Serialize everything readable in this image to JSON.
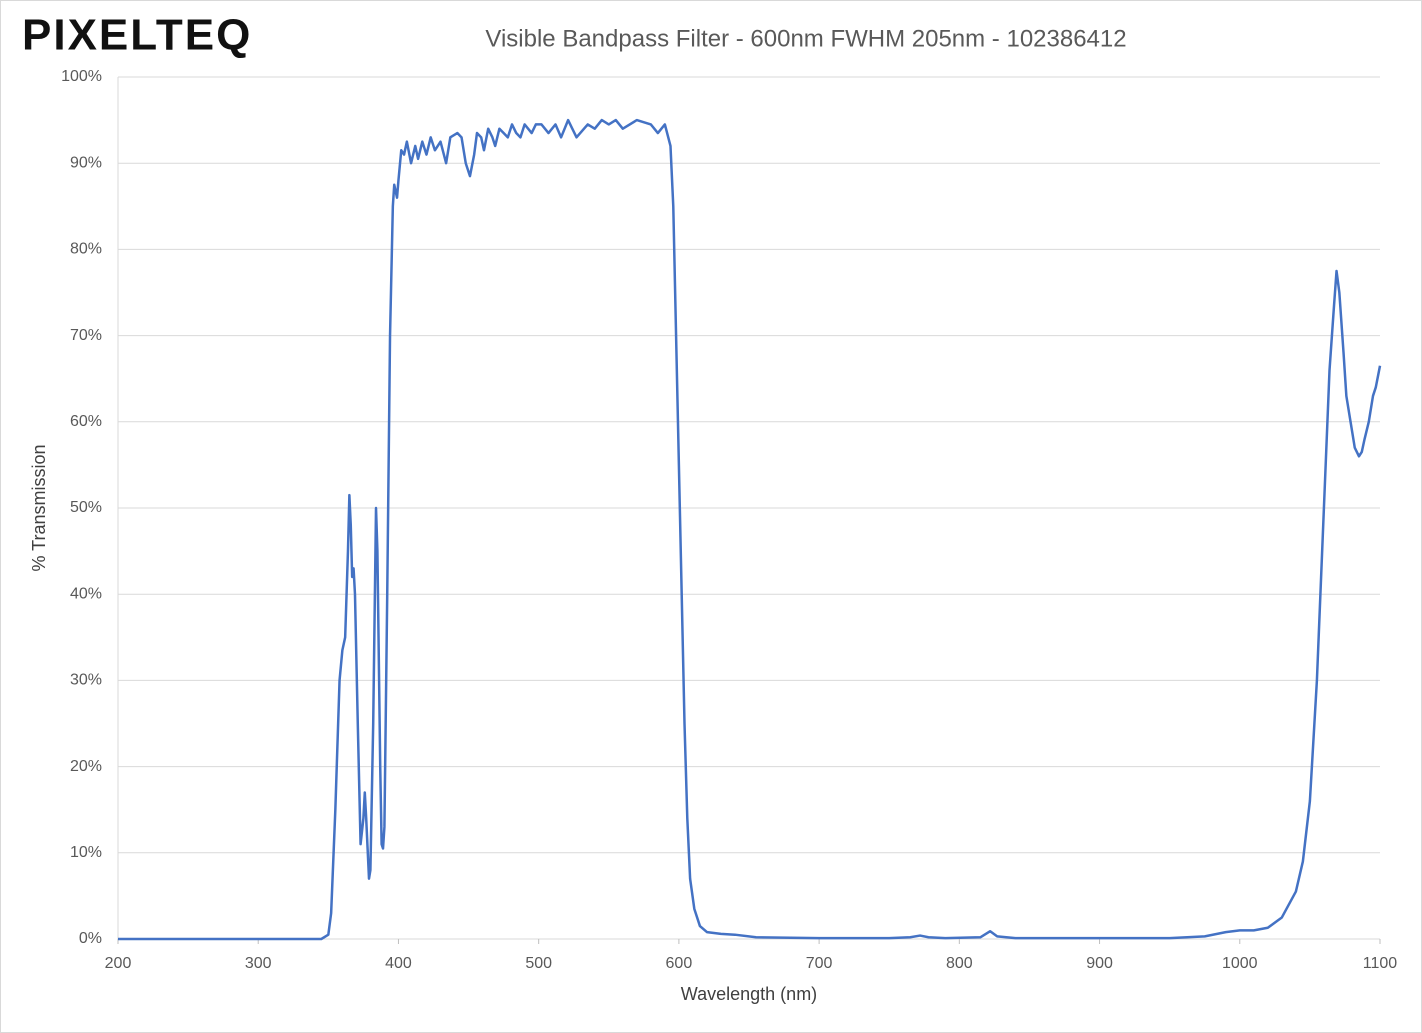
{
  "logo": "PIXELTEQ",
  "chart_data": {
    "type": "line",
    "title": "Visible Bandpass Filter - 600nm FWHM 205nm - 102386412",
    "x_label": "Wavelength (nm)",
    "y_label": "% Transmission",
    "xlim": [
      200,
      1100
    ],
    "xticks": [
      200,
      300,
      400,
      500,
      600,
      700,
      800,
      900,
      1000,
      1100
    ],
    "ylim": [
      0,
      100
    ],
    "yticks": [
      {
        "value": 0,
        "label": "0%"
      },
      {
        "value": 10,
        "label": "10%"
      },
      {
        "value": 20,
        "label": "20%"
      },
      {
        "value": 30,
        "label": "30%"
      },
      {
        "value": 40,
        "label": "40%"
      },
      {
        "value": 50,
        "label": "50%"
      },
      {
        "value": 60,
        "label": "60%"
      },
      {
        "value": 70,
        "label": "70%"
      },
      {
        "value": 80,
        "label": "80%"
      },
      {
        "value": 90,
        "label": "90%"
      },
      {
        "value": 100,
        "label": "100%"
      }
    ],
    "grid": true,
    "series": [
      {
        "color": "#4472c4",
        "x": [
          200,
          300,
          345,
          350,
          352,
          355,
          358,
          360,
          362,
          364,
          365,
          366,
          367,
          368,
          369,
          371,
          373,
          375,
          376,
          377,
          379,
          380,
          382,
          384,
          385,
          387,
          388,
          389,
          390,
          392,
          394,
          396,
          397,
          399,
          400,
          402,
          404,
          406,
          409,
          412,
          414,
          417,
          420,
          423,
          426,
          430,
          434,
          437,
          442,
          445,
          448,
          451,
          454,
          456,
          459,
          461,
          464,
          467,
          469,
          472,
          475,
          478,
          481,
          484,
          487,
          490,
          495,
          498,
          502,
          507,
          512,
          516,
          521,
          527,
          535,
          540,
          545,
          550,
          555,
          560,
          570,
          580,
          585,
          590,
          594,
          596,
          598,
          600,
          602,
          604,
          606,
          608,
          611,
          615,
          620,
          630,
          640,
          655,
          700,
          750,
          765,
          772,
          778,
          790,
          815,
          822,
          827,
          840,
          900,
          950,
          975,
          990,
          1000,
          1010,
          1020,
          1030,
          1040,
          1045,
          1050,
          1055,
          1060,
          1064,
          1067,
          1069,
          1071,
          1074,
          1076,
          1079,
          1082,
          1085,
          1087,
          1089,
          1092,
          1095,
          1097,
          1100
        ],
        "values": [
          0,
          0,
          0,
          0.5,
          3,
          15,
          30,
          33.5,
          35,
          45,
          51.5,
          48,
          42,
          43,
          40,
          25,
          11,
          14,
          17,
          14,
          7,
          8,
          25,
          50,
          45,
          20,
          11,
          10.5,
          13,
          40,
          70,
          85,
          87.5,
          86,
          88,
          91.5,
          91,
          92.5,
          90,
          92,
          90.5,
          92.5,
          91,
          93,
          91.5,
          92.5,
          90,
          93,
          93.5,
          93,
          90,
          88.5,
          91,
          93.5,
          93,
          91.5,
          94,
          93,
          92,
          94,
          93.5,
          93,
          94.5,
          93.5,
          93,
          94.5,
          93.5,
          94.5,
          94.5,
          93.5,
          94.5,
          93,
          95,
          93,
          94.5,
          94,
          95,
          94.5,
          95,
          94,
          95,
          94.5,
          93.5,
          94.5,
          92,
          85,
          70,
          55,
          40,
          25,
          14,
          7,
          3.5,
          1.5,
          0.8,
          0.6,
          0.5,
          0.2,
          0.1,
          0.1,
          0.2,
          0.4,
          0.2,
          0.1,
          0.2,
          0.9,
          0.3,
          0.1,
          0.1,
          0.1,
          0.3,
          0.8,
          1,
          1,
          1.3,
          2.5,
          5.5,
          9,
          16,
          30,
          50,
          66,
          73,
          77.5,
          75,
          68,
          63,
          60,
          57,
          56,
          56.5,
          58,
          60,
          63,
          64,
          66.5
        ]
      }
    ]
  }
}
